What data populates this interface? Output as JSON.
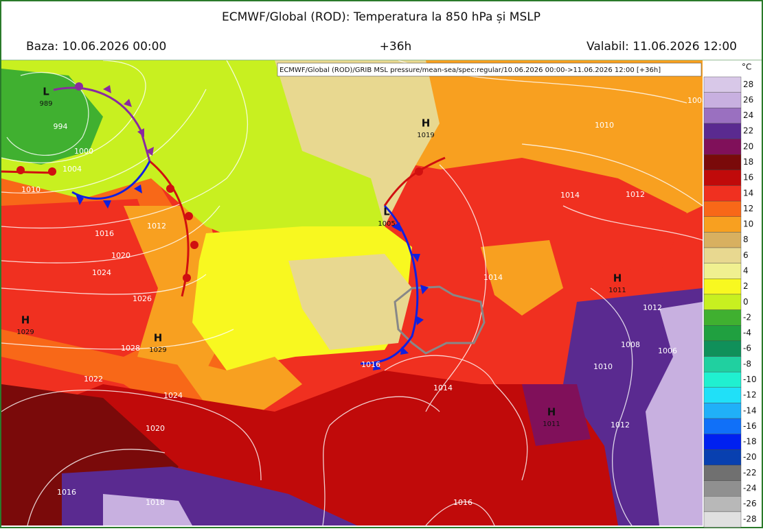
{
  "header": {
    "title": "ECMWF/Global (ROD): Temperatura la 850 hPa și MSLP",
    "base": "Baza: 10.06.2026 00:00",
    "lead": "+36h",
    "valid": "Valabil: 11.06.2026 12:00"
  },
  "map": {
    "caption": "ECMWF/Global (ROD)/GRIB MSL pressure/mean-sea/spec:regular/10.06.2026 00:00->11.06.2026 12:00 [+36h]",
    "pressure_centers": [
      {
        "label": "L",
        "value": "989"
      },
      {
        "label": "H",
        "value": "1019"
      },
      {
        "label": "L",
        "value": "1005"
      },
      {
        "label": "H",
        "value": "1029"
      },
      {
        "label": "H",
        "value": "1029"
      },
      {
        "label": "H",
        "value": "1011"
      },
      {
        "label": "H",
        "value": "1011"
      }
    ],
    "isobar_labels": [
      "994",
      "1000",
      "1004",
      "1010",
      "1012",
      "1016",
      "1020",
      "1024",
      "1026",
      "1028",
      "1022",
      "1024",
      "1020",
      "1016",
      "1018",
      "1008",
      "1010",
      "1014",
      "1012",
      "1014",
      "1012",
      "1008",
      "1006",
      "1010",
      "1016",
      "1014",
      "1012",
      "1016"
    ]
  },
  "legend": {
    "unit": "°C",
    "levels": [
      28,
      26,
      24,
      22,
      20,
      18,
      16,
      14,
      12,
      10,
      8,
      6,
      4,
      2,
      0,
      -2,
      -4,
      -6,
      -8,
      -10,
      -12,
      -14,
      -16,
      -18,
      -20,
      -22,
      -24,
      -26,
      -28
    ],
    "colors": [
      "#d8c8e8",
      "#c8b0e0",
      "#9a70c0",
      "#5a2a90",
      "#80105a",
      "#7a0a0a",
      "#c00a0a",
      "#f03020",
      "#f86818",
      "#f8a020",
      "#d8b060",
      "#e8d890",
      "#f0f090",
      "#f8f820",
      "#c8f020",
      "#40b030",
      "#20a040",
      "#10905a",
      "#20d0a0",
      "#20f0d0",
      "#20e0f8",
      "#20b0f8",
      "#1070f8",
      "#0020f0",
      "#0840b0",
      "#707070",
      "#909090",
      "#b8b8b8",
      "#e0e0e0"
    ]
  }
}
